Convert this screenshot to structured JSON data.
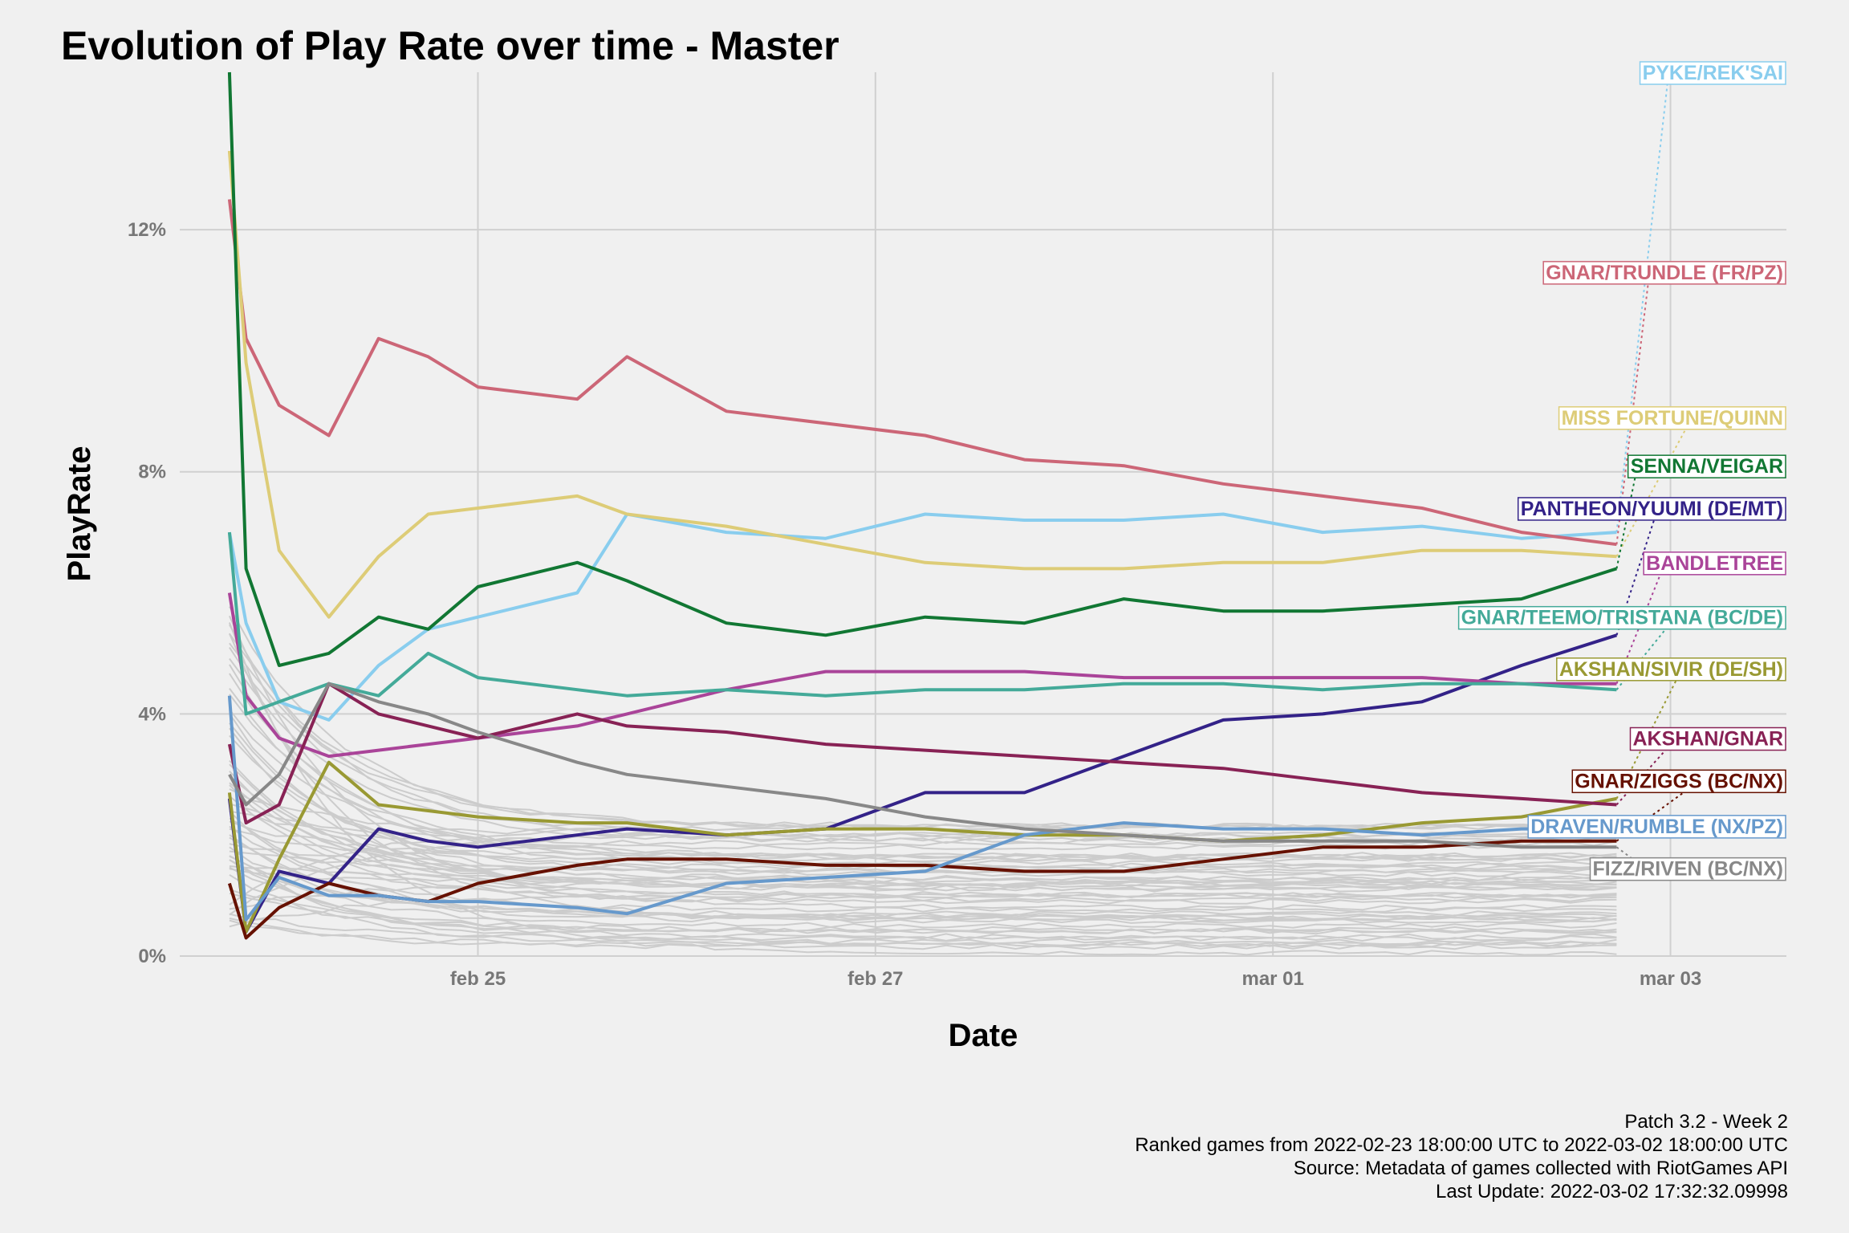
{
  "title": "Evolution of Play Rate over time - Master",
  "caption": [
    "Patch 3.2 - Week 2",
    "Ranked games from 2022-02-23 18:00:00 UTC to 2022-03-02 18:00:00 UTC",
    "Source: Metadata of games collected with RiotGames API",
    "Last Update: 2022-03-02 17:32:32.09998"
  ],
  "chart_data": {
    "type": "line",
    "title": "Evolution of Play Rate over time - Master",
    "xlabel": "Date",
    "ylabel": "PlayRate",
    "xlim": [
      "2022-02-23 12:00",
      "2022-03-03 14:00"
    ],
    "ylim": [
      0,
      14.6
    ],
    "x_ticks": [
      {
        "date": "2022-02-25 00:00",
        "label": "feb 25"
      },
      {
        "date": "2022-02-27 00:00",
        "label": "feb 27"
      },
      {
        "date": "2022-03-01 00:00",
        "label": "mar 01"
      },
      {
        "date": "2022-03-03 00:00",
        "label": "mar 03"
      }
    ],
    "y_ticks": [
      {
        "value": 0,
        "label": "0%"
      },
      {
        "value": 4,
        "label": "4%"
      },
      {
        "value": 8,
        "label": "8%"
      },
      {
        "value": 12,
        "label": "12%"
      }
    ],
    "grid": true,
    "legend": "direct labels at right",
    "background_lines_color": "#cccccc",
    "series": [
      {
        "name": "PYKE/REK'SAI",
        "color": "#89cdee",
        "label_value": 14.6,
        "x": [
          "2022-02-23 18:00",
          "2022-02-23 20:00",
          "2022-02-24 00:00",
          "2022-02-24 06:00",
          "2022-02-24 12:00",
          "2022-02-24 18:00",
          "2022-02-25 00:00",
          "2022-02-25 12:00",
          "2022-02-25 18:00",
          "2022-02-26 06:00",
          "2022-02-26 18:00",
          "2022-02-27 06:00",
          "2022-02-27 18:00",
          "2022-02-28 06:00",
          "2022-02-28 18:00",
          "2022-03-01 06:00",
          "2022-03-01 18:00",
          "2022-03-02 06:00",
          "2022-03-02 17:30"
        ],
        "y": [
          7.0,
          5.5,
          4.2,
          3.9,
          4.8,
          5.4,
          5.6,
          6.0,
          7.3,
          7.0,
          6.9,
          7.3,
          7.2,
          7.2,
          7.3,
          7.0,
          7.1,
          6.9,
          7.0
        ]
      },
      {
        "name": "GNAR/TRUNDLE (FR/PZ)",
        "color": "#cc6677",
        "label_value": 11.3,
        "x": [
          "2022-02-23 18:00",
          "2022-02-23 20:00",
          "2022-02-24 00:00",
          "2022-02-24 06:00",
          "2022-02-24 12:00",
          "2022-02-24 18:00",
          "2022-02-25 00:00",
          "2022-02-25 12:00",
          "2022-02-25 18:00",
          "2022-02-26 06:00",
          "2022-02-26 18:00",
          "2022-02-27 06:00",
          "2022-02-27 18:00",
          "2022-02-28 06:00",
          "2022-02-28 18:00",
          "2022-03-01 06:00",
          "2022-03-01 18:00",
          "2022-03-02 06:00",
          "2022-03-02 17:30"
        ],
        "y": [
          12.5,
          10.2,
          9.1,
          8.6,
          10.2,
          9.9,
          9.4,
          9.2,
          9.9,
          9.0,
          8.8,
          8.6,
          8.2,
          8.1,
          7.8,
          7.6,
          7.4,
          7.0,
          6.8
        ]
      },
      {
        "name": "MISS FORTUNE/QUINN",
        "color": "#ddcc77",
        "label_value": 8.9,
        "x": [
          "2022-02-23 18:00",
          "2022-02-23 20:00",
          "2022-02-24 00:00",
          "2022-02-24 06:00",
          "2022-02-24 12:00",
          "2022-02-24 18:00",
          "2022-02-25 00:00",
          "2022-02-25 12:00",
          "2022-02-25 18:00",
          "2022-02-26 06:00",
          "2022-02-26 18:00",
          "2022-02-27 06:00",
          "2022-02-27 18:00",
          "2022-02-28 06:00",
          "2022-02-28 18:00",
          "2022-03-01 06:00",
          "2022-03-01 18:00",
          "2022-03-02 06:00",
          "2022-03-02 17:30"
        ],
        "y": [
          13.3,
          9.8,
          6.7,
          5.6,
          6.6,
          7.3,
          7.4,
          7.6,
          7.3,
          7.1,
          6.8,
          6.5,
          6.4,
          6.4,
          6.5,
          6.5,
          6.7,
          6.7,
          6.6
        ]
      },
      {
        "name": "SENNA/VEIGAR",
        "color": "#117733",
        "label_value": 8.1,
        "x": [
          "2022-02-23 18:00",
          "2022-02-23 20:00",
          "2022-02-24 00:00",
          "2022-02-24 06:00",
          "2022-02-24 12:00",
          "2022-02-24 18:00",
          "2022-02-25 00:00",
          "2022-02-25 12:00",
          "2022-02-25 18:00",
          "2022-02-26 06:00",
          "2022-02-26 18:00",
          "2022-02-27 06:00",
          "2022-02-27 18:00",
          "2022-02-28 06:00",
          "2022-02-28 18:00",
          "2022-03-01 06:00",
          "2022-03-01 18:00",
          "2022-03-02 06:00",
          "2022-03-02 17:30"
        ],
        "y": [
          14.6,
          6.4,
          4.8,
          5.0,
          5.6,
          5.4,
          6.1,
          6.5,
          6.2,
          5.5,
          5.3,
          5.6,
          5.5,
          5.9,
          5.7,
          5.7,
          5.8,
          5.9,
          6.4
        ]
      },
      {
        "name": "PANTHEON/YUUMI (DE/MT)",
        "color": "#332288",
        "label_value": 7.4,
        "x": [
          "2022-02-23 18:00",
          "2022-02-23 20:00",
          "2022-02-24 00:00",
          "2022-02-24 06:00",
          "2022-02-24 12:00",
          "2022-02-24 18:00",
          "2022-02-25 00:00",
          "2022-02-25 12:00",
          "2022-02-25 18:00",
          "2022-02-26 06:00",
          "2022-02-26 18:00",
          "2022-02-27 06:00",
          "2022-02-27 18:00",
          "2022-02-28 06:00",
          "2022-02-28 18:00",
          "2022-03-01 06:00",
          "2022-03-01 18:00",
          "2022-03-02 06:00",
          "2022-03-02 17:30"
        ],
        "y": [
          2.6,
          0.4,
          1.4,
          1.2,
          2.1,
          1.9,
          1.8,
          2.0,
          2.1,
          2.0,
          2.1,
          2.7,
          2.7,
          3.3,
          3.9,
          4.0,
          4.2,
          4.8,
          5.3
        ]
      },
      {
        "name": "BANDLETREE",
        "color": "#aa4499",
        "label_value": 6.5,
        "x": [
          "2022-02-23 18:00",
          "2022-02-23 20:00",
          "2022-02-24 00:00",
          "2022-02-24 06:00",
          "2022-02-24 12:00",
          "2022-02-24 18:00",
          "2022-02-25 00:00",
          "2022-02-25 12:00",
          "2022-02-25 18:00",
          "2022-02-26 06:00",
          "2022-02-26 18:00",
          "2022-02-27 06:00",
          "2022-02-27 18:00",
          "2022-02-28 06:00",
          "2022-02-28 18:00",
          "2022-03-01 06:00",
          "2022-03-01 18:00",
          "2022-03-02 06:00",
          "2022-03-02 17:30"
        ],
        "y": [
          6.0,
          4.3,
          3.6,
          3.3,
          3.4,
          3.5,
          3.6,
          3.8,
          4.0,
          4.4,
          4.7,
          4.7,
          4.7,
          4.6,
          4.6,
          4.6,
          4.6,
          4.5,
          4.5
        ]
      },
      {
        "name": "GNAR/TEEMO/TRISTANA (BC/DE)",
        "color": "#44aa99",
        "label_value": 5.6,
        "x": [
          "2022-02-23 18:00",
          "2022-02-23 20:00",
          "2022-02-24 00:00",
          "2022-02-24 06:00",
          "2022-02-24 12:00",
          "2022-02-24 18:00",
          "2022-02-25 00:00",
          "2022-02-25 12:00",
          "2022-02-25 18:00",
          "2022-02-26 06:00",
          "2022-02-26 18:00",
          "2022-02-27 06:00",
          "2022-02-27 18:00",
          "2022-02-28 06:00",
          "2022-02-28 18:00",
          "2022-03-01 06:00",
          "2022-03-01 18:00",
          "2022-03-02 06:00",
          "2022-03-02 17:30"
        ],
        "y": [
          7.0,
          4.0,
          4.2,
          4.5,
          4.3,
          5.0,
          4.6,
          4.4,
          4.3,
          4.4,
          4.3,
          4.4,
          4.4,
          4.5,
          4.5,
          4.4,
          4.5,
          4.5,
          4.4
        ]
      },
      {
        "name": "AKSHAN/SIVIR (DE/SH)",
        "color": "#999933",
        "label_value": 4.75,
        "x": [
          "2022-02-23 18:00",
          "2022-02-23 20:00",
          "2022-02-24 00:00",
          "2022-02-24 06:00",
          "2022-02-24 12:00",
          "2022-02-24 18:00",
          "2022-02-25 00:00",
          "2022-02-25 12:00",
          "2022-02-25 18:00",
          "2022-02-26 06:00",
          "2022-02-26 18:00",
          "2022-02-27 06:00",
          "2022-02-27 18:00",
          "2022-02-28 06:00",
          "2022-02-28 18:00",
          "2022-03-01 06:00",
          "2022-03-01 18:00",
          "2022-03-02 06:00",
          "2022-03-02 17:30"
        ],
        "y": [
          2.7,
          0.4,
          1.6,
          3.2,
          2.5,
          2.4,
          2.3,
          2.2,
          2.2,
          2.0,
          2.1,
          2.1,
          2.0,
          2.0,
          1.9,
          2.0,
          2.2,
          2.3,
          2.6
        ]
      },
      {
        "name": "AKSHAN/GNAR",
        "color": "#882255",
        "label_value": 3.6,
        "x": [
          "2022-02-23 18:00",
          "2022-02-23 20:00",
          "2022-02-24 00:00",
          "2022-02-24 06:00",
          "2022-02-24 12:00",
          "2022-02-24 18:00",
          "2022-02-25 00:00",
          "2022-02-25 12:00",
          "2022-02-25 18:00",
          "2022-02-26 06:00",
          "2022-02-26 18:00",
          "2022-02-27 06:00",
          "2022-02-27 18:00",
          "2022-02-28 06:00",
          "2022-02-28 18:00",
          "2022-03-01 06:00",
          "2022-03-01 18:00",
          "2022-03-02 06:00",
          "2022-03-02 17:30"
        ],
        "y": [
          3.5,
          2.2,
          2.5,
          4.5,
          4.0,
          3.8,
          3.6,
          4.0,
          3.8,
          3.7,
          3.5,
          3.4,
          3.3,
          3.2,
          3.1,
          2.9,
          2.7,
          2.6,
          2.5
        ]
      },
      {
        "name": "GNAR/ZIGGS (BC/NX)",
        "color": "#661100",
        "label_value": 2.9,
        "x": [
          "2022-02-23 18:00",
          "2022-02-23 20:00",
          "2022-02-24 00:00",
          "2022-02-24 06:00",
          "2022-02-24 12:00",
          "2022-02-24 18:00",
          "2022-02-25 00:00",
          "2022-02-25 12:00",
          "2022-02-25 18:00",
          "2022-02-26 06:00",
          "2022-02-26 18:00",
          "2022-02-27 06:00",
          "2022-02-27 18:00",
          "2022-02-28 06:00",
          "2022-02-28 18:00",
          "2022-03-01 06:00",
          "2022-03-01 18:00",
          "2022-03-02 06:00",
          "2022-03-02 17:30"
        ],
        "y": [
          1.2,
          0.3,
          0.8,
          1.2,
          1.0,
          0.9,
          1.2,
          1.5,
          1.6,
          1.6,
          1.5,
          1.5,
          1.4,
          1.4,
          1.6,
          1.8,
          1.8,
          1.9,
          1.9
        ]
      },
      {
        "name": "DRAVEN/RUMBLE (NX/PZ)",
        "color": "#6699cc",
        "label_value": 2.15,
        "x": [
          "2022-02-23 18:00",
          "2022-02-23 20:00",
          "2022-02-24 00:00",
          "2022-02-24 06:00",
          "2022-02-24 12:00",
          "2022-02-24 18:00",
          "2022-02-25 00:00",
          "2022-02-25 12:00",
          "2022-02-25 18:00",
          "2022-02-26 06:00",
          "2022-02-26 18:00",
          "2022-02-27 06:00",
          "2022-02-27 18:00",
          "2022-02-28 06:00",
          "2022-02-28 18:00",
          "2022-03-01 06:00",
          "2022-03-01 18:00",
          "2022-03-02 06:00",
          "2022-03-02 17:30"
        ],
        "y": [
          4.3,
          0.6,
          1.3,
          1.0,
          1.0,
          0.9,
          0.9,
          0.8,
          0.7,
          1.2,
          1.3,
          1.4,
          2.0,
          2.2,
          2.1,
          2.1,
          2.0,
          2.1,
          2.1
        ]
      },
      {
        "name": "FIZZ/RIVEN (BC/NX)",
        "color": "#888888",
        "label_value": 1.45,
        "x": [
          "2022-02-23 18:00",
          "2022-02-23 20:00",
          "2022-02-24 00:00",
          "2022-02-24 06:00",
          "2022-02-24 12:00",
          "2022-02-24 18:00",
          "2022-02-25 00:00",
          "2022-02-25 12:00",
          "2022-02-25 18:00",
          "2022-02-26 06:00",
          "2022-02-26 18:00",
          "2022-02-27 06:00",
          "2022-02-27 18:00",
          "2022-02-28 06:00",
          "2022-02-28 18:00",
          "2022-03-01 06:00",
          "2022-03-01 18:00",
          "2022-03-02 06:00",
          "2022-03-02 17:30"
        ],
        "y": [
          3.0,
          2.5,
          3.0,
          4.5,
          4.2,
          4.0,
          3.7,
          3.2,
          3.0,
          2.8,
          2.6,
          2.3,
          2.1,
          2.0,
          1.9,
          1.9,
          1.9,
          1.8,
          1.8
        ]
      }
    ]
  }
}
